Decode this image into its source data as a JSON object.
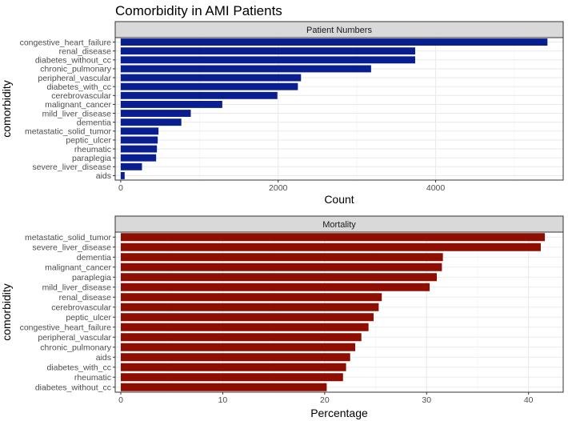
{
  "title": "Comorbidity in AMI Patients",
  "chart_data": [
    {
      "type": "bar",
      "orientation": "horizontal",
      "strip_label": "Patient Numbers",
      "xlabel": "Count",
      "ylabel": "comorbidity",
      "xlim": [
        -70,
        5620
      ],
      "xticks": [
        0,
        2000,
        4000
      ],
      "grid": true,
      "bar_color": "#0a1f8f",
      "categories": [
        "congestive_heart_failure",
        "renal_disease",
        "diabetes_without_cc",
        "chronic_pulmonary",
        "peripheral_vascular",
        "diabetes_with_cc",
        "cerebrovascular",
        "malignant_cancer",
        "mild_liver_disease",
        "dementia",
        "metastatic_solid_tumor",
        "peptic_ulcer",
        "rheumatic",
        "paraplegia",
        "severe_liver_disease",
        "aids"
      ],
      "values": [
        5420,
        3740,
        3740,
        3180,
        2290,
        2250,
        1990,
        1290,
        890,
        770,
        480,
        470,
        460,
        450,
        270,
        50
      ]
    },
    {
      "type": "bar",
      "orientation": "horizontal",
      "strip_label": "Mortality",
      "xlabel": "Percentage",
      "ylabel": "comorbidity",
      "xlim": [
        -0.55,
        43.4
      ],
      "xticks": [
        0,
        10,
        20,
        30,
        40
      ],
      "grid": true,
      "bar_color": "#8e0e02",
      "categories": [
        "metastatic_solid_tumor",
        "severe_liver_disease",
        "dementia",
        "malignant_cancer",
        "paraplegia",
        "mild_liver_disease",
        "renal_disease",
        "cerebrovascular",
        "peptic_ulcer",
        "congestive_heart_failure",
        "peripheral_vascular",
        "chronic_pulmonary",
        "aids",
        "diabetes_with_cc",
        "rheumatic",
        "diabetes_without_cc"
      ],
      "values": [
        41.6,
        41.2,
        31.6,
        31.5,
        31.0,
        30.3,
        25.6,
        25.3,
        24.8,
        24.3,
        23.6,
        23.0,
        22.5,
        22.1,
        21.8,
        20.2
      ]
    }
  ]
}
